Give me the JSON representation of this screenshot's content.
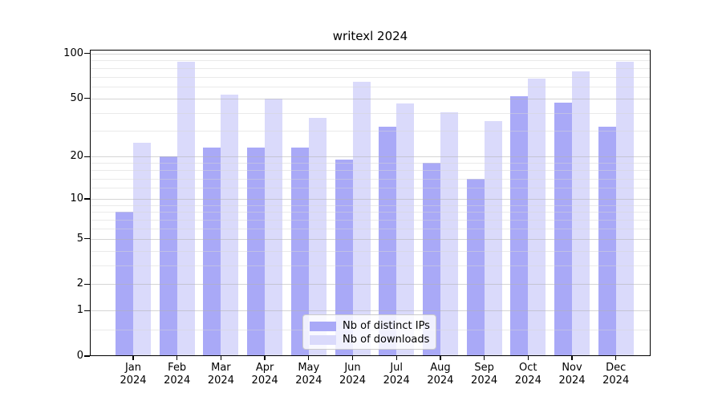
{
  "chart_data": {
    "type": "bar",
    "title": "writexl 2024",
    "categories": [
      "Jan",
      "Feb",
      "Mar",
      "Apr",
      "May",
      "Jun",
      "Jul",
      "Aug",
      "Sep",
      "Oct",
      "Nov",
      "Dec"
    ],
    "x_tick_year": "2024",
    "series": [
      {
        "name": "Nb of distinct IPs",
        "color": "#a9a9f7",
        "values": [
          8,
          20,
          23,
          23,
          23,
          19,
          32,
          18,
          14,
          52,
          47,
          32
        ]
      },
      {
        "name": "Nb of downloads",
        "color": "#dadafb",
        "values": [
          25,
          88,
          53,
          50,
          37,
          65,
          46,
          40,
          35,
          68,
          76,
          88
        ]
      }
    ],
    "y_axis": {
      "scale": "log1p",
      "ticks": [
        0,
        1,
        2,
        5,
        10,
        20,
        50,
        100
      ],
      "minor_ticks": [
        0.5,
        3,
        4,
        6,
        7,
        8,
        9,
        12,
        14,
        16,
        18,
        30,
        40,
        60,
        70,
        80,
        90
      ],
      "max": 107
    },
    "grid": true,
    "legend_position": "lower-center",
    "background_color": "#ffffff",
    "text_color": "#000000"
  }
}
